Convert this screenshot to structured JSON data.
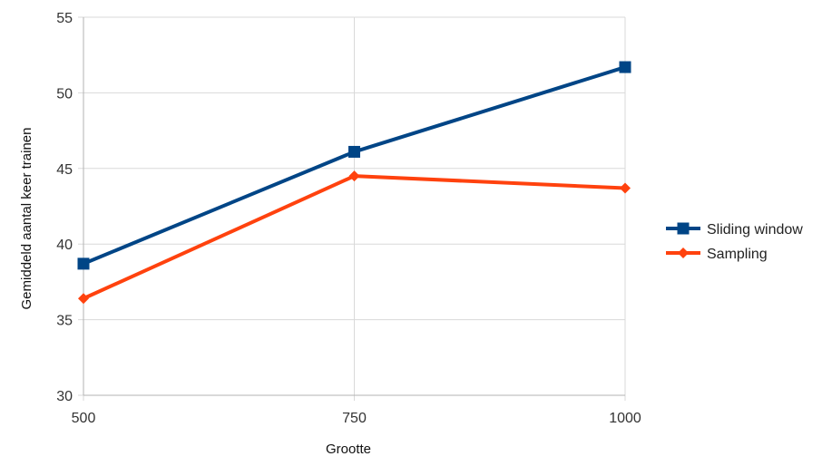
{
  "chart_data": {
    "type": "line",
    "title": "",
    "xlabel": "Grootte",
    "ylabel": "Gemiddeld aantal keer trainen",
    "x": [
      500,
      750,
      1000
    ],
    "ylim": [
      30,
      55
    ],
    "yticks": [
      30,
      35,
      40,
      45,
      50,
      55
    ],
    "grid": true,
    "legend": "right",
    "series": [
      {
        "name": "Sliding window",
        "values": [
          38.7,
          46.1,
          51.7
        ],
        "color": "#004586",
        "marker": "square"
      },
      {
        "name": "Sampling",
        "values": [
          36.4,
          44.5,
          43.7
        ],
        "color": "#ff420e",
        "marker": "diamond"
      }
    ]
  }
}
